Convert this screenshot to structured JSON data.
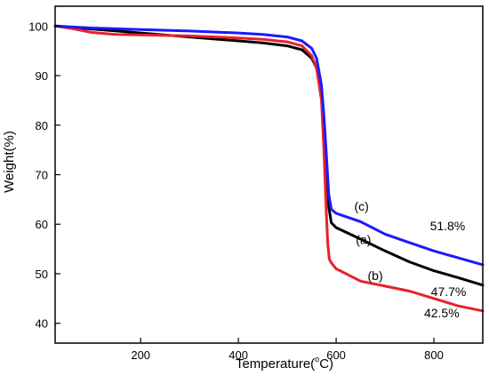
{
  "chart_data": {
    "type": "line",
    "xlabel_main": "Temperature(",
    "xlabel_degree": "o",
    "xlabel_unit": "C)",
    "ylabel": "Weight(%)",
    "xlim": [
      25,
      900
    ],
    "ylim": [
      36,
      104
    ],
    "x_ticks": [
      200,
      400,
      600,
      800
    ],
    "y_ticks": [
      40,
      50,
      60,
      70,
      80,
      90,
      100
    ],
    "grid": false,
    "series": [
      {
        "color": "#000000",
        "x": [
          25,
          100,
          200,
          300,
          400,
          450,
          500,
          530,
          550,
          560,
          570,
          575,
          580,
          585,
          590,
          600,
          650,
          700,
          750,
          800,
          850,
          900
        ],
        "y": [
          100,
          99.4,
          98.6,
          97.8,
          97.0,
          96.6,
          96.0,
          95.2,
          93.5,
          91.5,
          86.0,
          80.0,
          72.0,
          63.5,
          60.3,
          59.3,
          57.0,
          54.6,
          52.4,
          50.6,
          49.2,
          47.7
        ]
      },
      {
        "color": "#e8202a",
        "x": [
          25,
          60,
          100,
          150,
          200,
          300,
          400,
          450,
          500,
          530,
          550,
          560,
          570,
          575,
          580,
          583,
          586,
          590,
          600,
          650,
          700,
          750,
          800,
          850,
          900
        ],
        "y": [
          100,
          99.5,
          98.7,
          98.3,
          98.2,
          98.0,
          97.6,
          97.3,
          96.8,
          96.0,
          94.0,
          91.5,
          85.0,
          75.0,
          62.0,
          56.0,
          53.0,
          52.2,
          51.0,
          48.5,
          47.5,
          46.5,
          45.0,
          43.5,
          42.5
        ]
      },
      {
        "color": "#1a1aff",
        "x": [
          25,
          100,
          200,
          300,
          400,
          450,
          500,
          530,
          550,
          560,
          570,
          575,
          580,
          585,
          590,
          600,
          650,
          700,
          750,
          800,
          850,
          900
        ],
        "y": [
          100,
          99.6,
          99.3,
          99.0,
          98.6,
          98.3,
          97.8,
          97.0,
          95.5,
          93.5,
          88.0,
          82.0,
          74.0,
          66.0,
          63.0,
          62.2,
          60.5,
          58.0,
          56.3,
          54.6,
          53.2,
          51.8
        ]
      }
    ],
    "annotations": [
      {
        "text": "(c)",
        "x": 652,
        "y": 62.7
      },
      {
        "text": "(a)",
        "x": 656,
        "y": 56.0
      },
      {
        "text": "(b)",
        "x": 680,
        "y": 48.7
      },
      {
        "text": "51.8%",
        "x": 828,
        "y": 58.8
      },
      {
        "text": "47.7%",
        "x": 830,
        "y": 45.5
      },
      {
        "text": "42.5%",
        "x": 816,
        "y": 41.2
      }
    ]
  }
}
